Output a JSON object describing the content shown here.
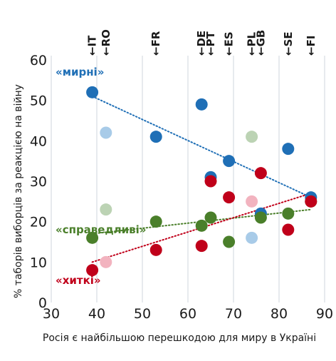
{
  "chart_data": {
    "type": "scatter",
    "xlabel": "Росія є найбільшою перешкодою для миру в Україні",
    "ylabel": "% таборів виборців за реакцією на війну",
    "xlim": [
      30,
      90
    ],
    "ylim": [
      0,
      60
    ],
    "xticks": [
      30,
      40,
      50,
      60,
      70,
      80,
      90
    ],
    "yticks": [
      0,
      10,
      20,
      30,
      40,
      50,
      60
    ],
    "grid": "vertical",
    "countries": [
      {
        "code": "IT",
        "x": 39
      },
      {
        "code": "RO",
        "x": 42
      },
      {
        "code": "FR",
        "x": 53
      },
      {
        "code": "DE",
        "x": 63
      },
      {
        "code": "PT",
        "x": 65
      },
      {
        "code": "ES",
        "x": 69
      },
      {
        "code": "PL",
        "x": 74
      },
      {
        "code": "GB",
        "x": 76
      },
      {
        "code": "SE",
        "x": 82
      },
      {
        "code": "FI",
        "x": 87
      }
    ],
    "series": [
      {
        "name": "«мирні»",
        "color": "#1f6fb6",
        "faded_color": "#a8cbe8",
        "points": [
          {
            "country": "IT",
            "x": 39,
            "y": 52,
            "faded": false
          },
          {
            "country": "RO",
            "x": 42,
            "y": 42,
            "faded": true
          },
          {
            "country": "FR",
            "x": 53,
            "y": 41,
            "faded": false
          },
          {
            "country": "DE",
            "x": 63,
            "y": 49,
            "faded": false
          },
          {
            "country": "PT",
            "x": 65,
            "y": 31,
            "faded": false
          },
          {
            "country": "ES",
            "x": 69,
            "y": 35,
            "faded": false
          },
          {
            "country": "PL",
            "x": 74,
            "y": 16,
            "faded": true
          },
          {
            "country": "GB",
            "x": 76,
            "y": 22,
            "faded": false
          },
          {
            "country": "SE",
            "x": 82,
            "y": 38,
            "faded": false
          },
          {
            "country": "FI",
            "x": 87,
            "y": 26,
            "faded": false
          }
        ],
        "trend": [
          [
            39,
            51
          ],
          [
            87,
            26
          ]
        ]
      },
      {
        "name": "«справедливі»",
        "color": "#4a7f2a",
        "faded_color": "#bcd3b4",
        "points": [
          {
            "country": "IT",
            "x": 39,
            "y": 16,
            "faded": false
          },
          {
            "country": "RO",
            "x": 42,
            "y": 23,
            "faded": true
          },
          {
            "country": "FR",
            "x": 53,
            "y": 20,
            "faded": false
          },
          {
            "country": "DE",
            "x": 63,
            "y": 19,
            "faded": false
          },
          {
            "country": "PT",
            "x": 65,
            "y": 21,
            "faded": false
          },
          {
            "country": "ES",
            "x": 69,
            "y": 15,
            "faded": false
          },
          {
            "country": "PL",
            "x": 74,
            "y": 41,
            "faded": true
          },
          {
            "country": "GB",
            "x": 76,
            "y": 21,
            "faded": false
          },
          {
            "country": "SE",
            "x": 82,
            "y": 22,
            "faded": false
          },
          {
            "country": "FI",
            "x": 87,
            "y": 25,
            "faded": false
          }
        ],
        "trend": [
          [
            39,
            17
          ],
          [
            87,
            23
          ]
        ]
      },
      {
        "name": "«хиткі»",
        "color": "#c0001a",
        "faded_color": "#f2b3bf",
        "points": [
          {
            "country": "IT",
            "x": 39,
            "y": 8,
            "faded": false
          },
          {
            "country": "RO",
            "x": 42,
            "y": 10,
            "faded": true
          },
          {
            "country": "FR",
            "x": 53,
            "y": 13,
            "faded": false
          },
          {
            "country": "DE",
            "x": 63,
            "y": 14,
            "faded": false
          },
          {
            "country": "PT",
            "x": 65,
            "y": 30,
            "faded": false
          },
          {
            "country": "ES",
            "x": 69,
            "y": 26,
            "faded": false
          },
          {
            "country": "PL",
            "x": 74,
            "y": 25,
            "faded": true
          },
          {
            "country": "GB",
            "x": 76,
            "y": 32,
            "faded": false
          },
          {
            "country": "SE",
            "x": 82,
            "y": 18,
            "faded": false
          },
          {
            "country": "FI",
            "x": 87,
            "y": 25,
            "faded": false
          }
        ],
        "trend": [
          [
            39,
            10
          ],
          [
            87,
            27
          ]
        ]
      }
    ]
  }
}
